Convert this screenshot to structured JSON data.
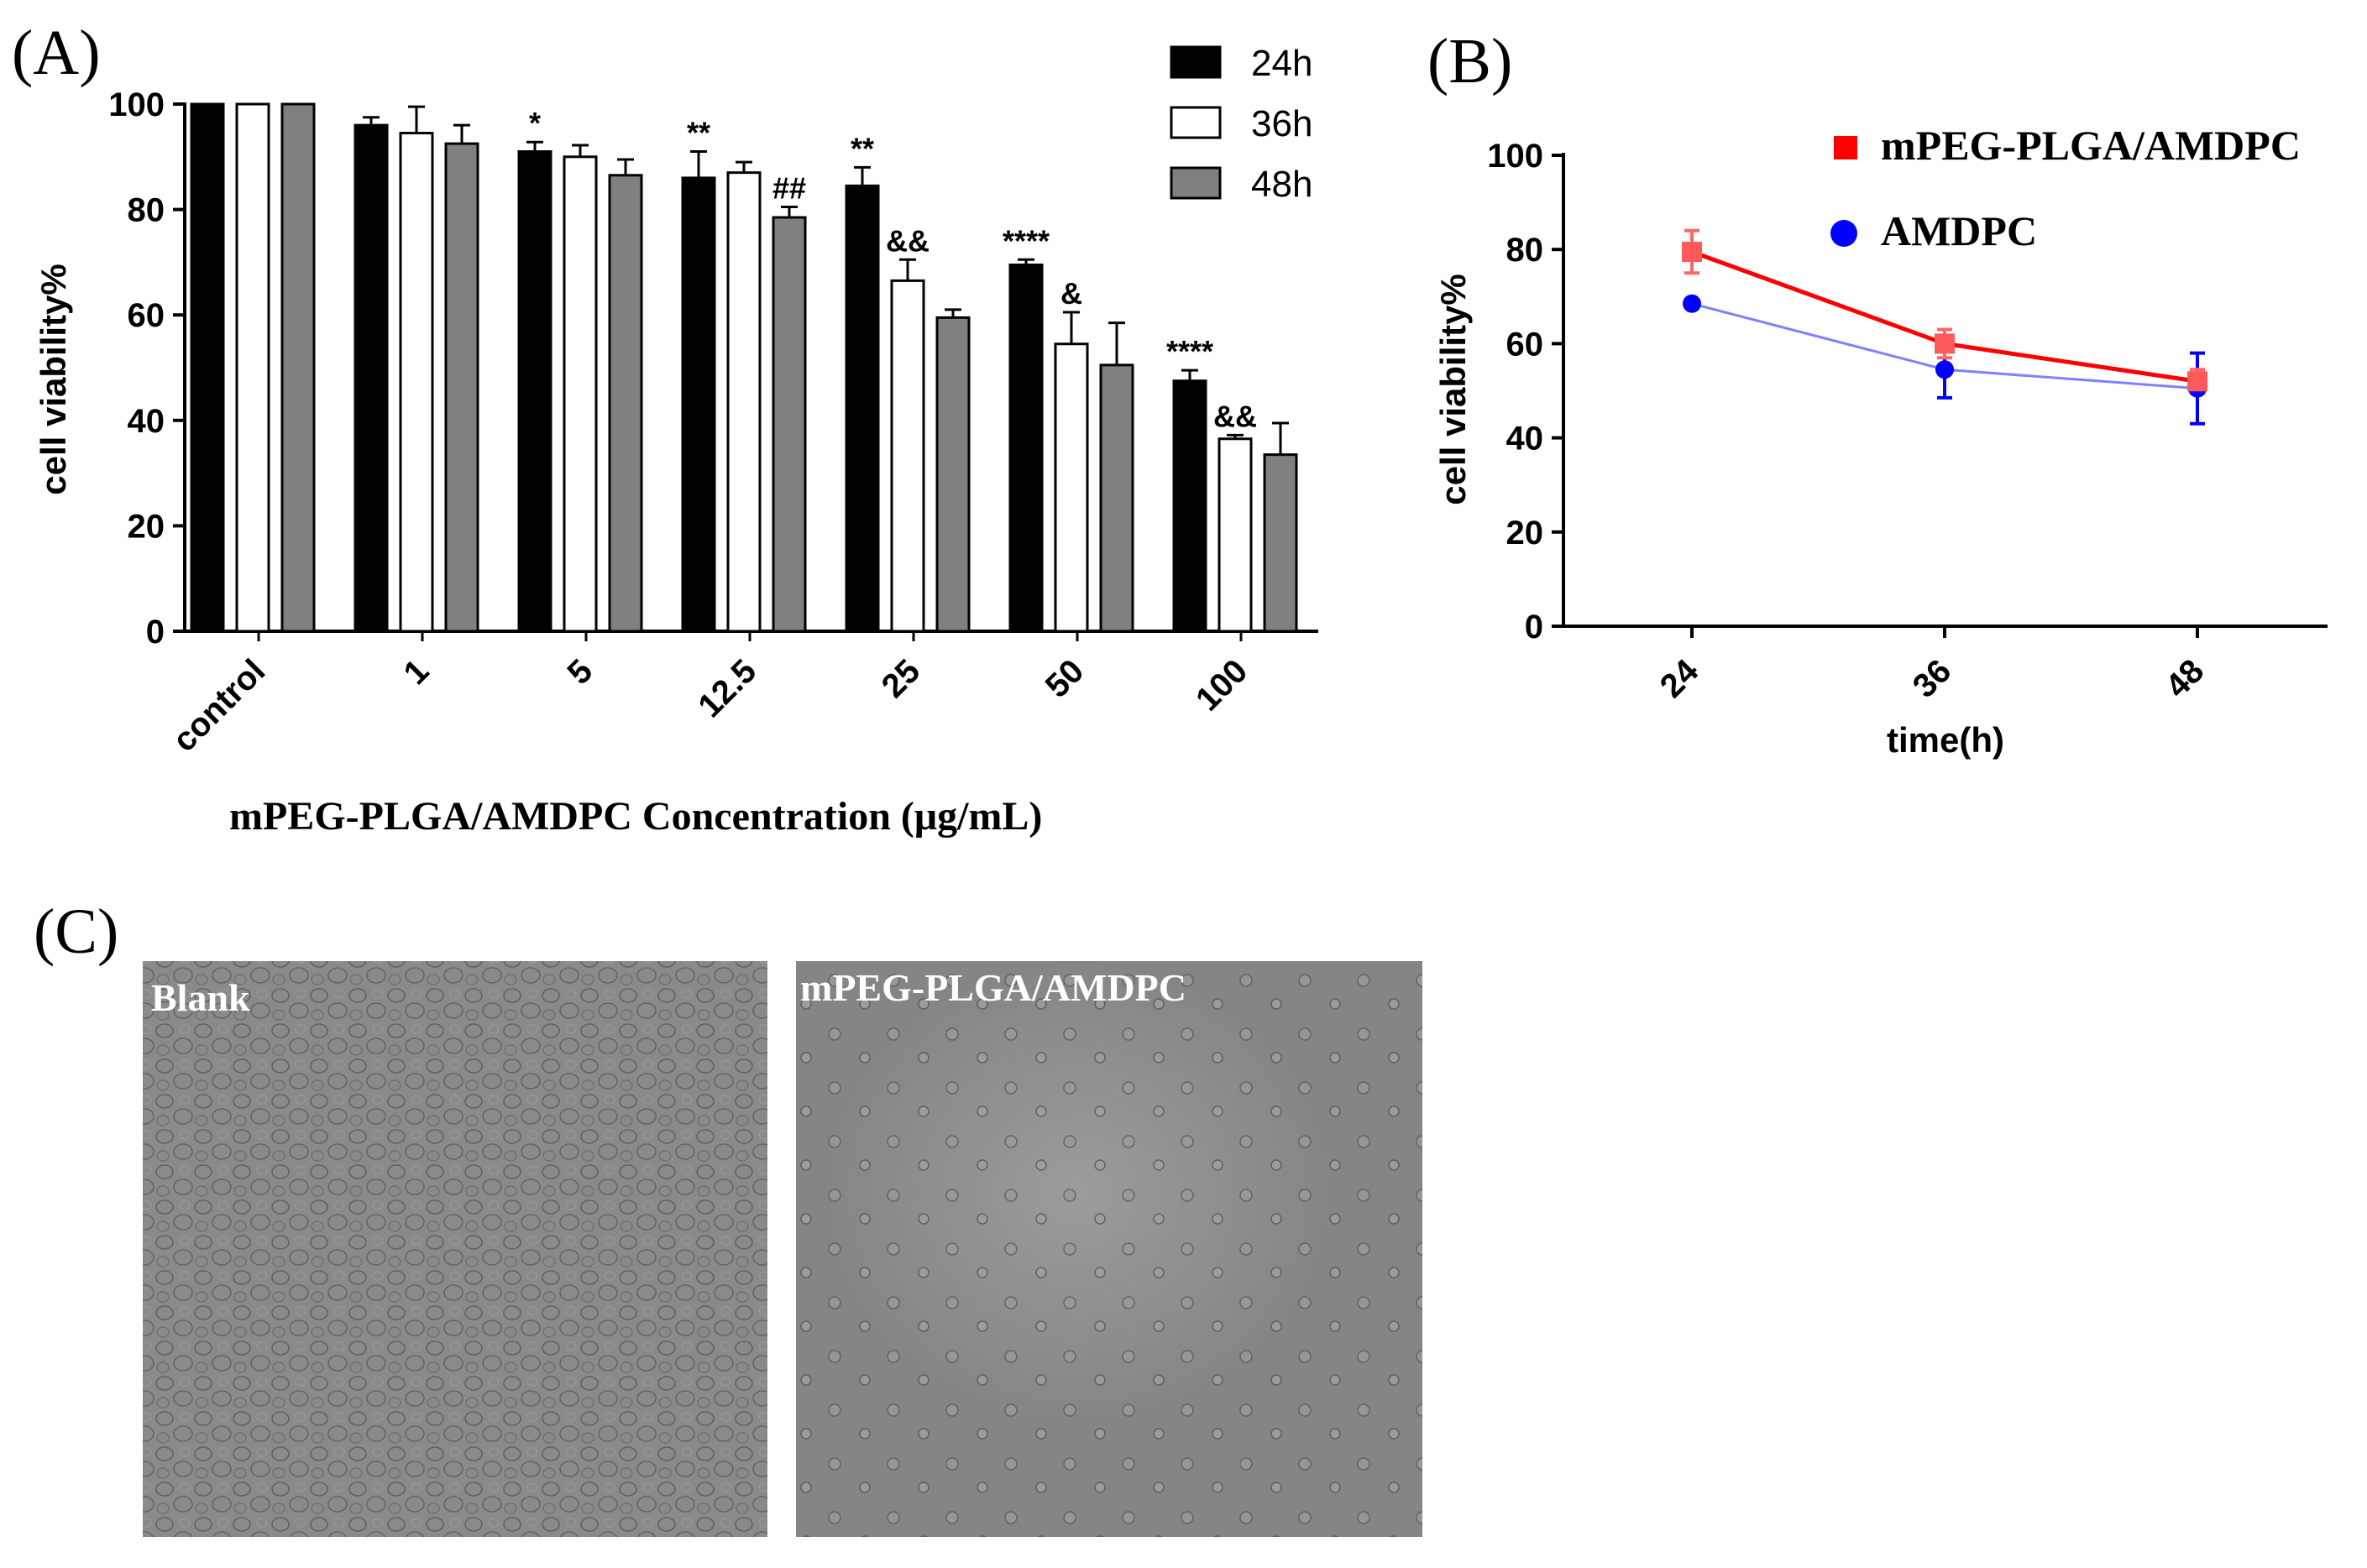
{
  "panels": {
    "a_label": "(A)",
    "b_label": "(B)",
    "c_label": "(C)"
  },
  "chart_data": [
    {
      "id": "A",
      "type": "bar",
      "title": "",
      "xlabel": "mPEG-PLGA/AMDPC Concentration  (μg/mL)",
      "ylabel": "cell viability%",
      "ylim": [
        0,
        100
      ],
      "yticks": [
        "0",
        "20",
        "40",
        "60",
        "80",
        "100"
      ],
      "categories": [
        "control",
        "1",
        "5",
        "12.5",
        "25",
        "50",
        "100"
      ],
      "legend_position": "top-right",
      "series": [
        {
          "name": "24h",
          "color": "#000000",
          "values": [
            100,
            96,
            91,
            86,
            84.5,
            69.5,
            47.5
          ],
          "errors": [
            0,
            1.5,
            1.8,
            5,
            3.5,
            1,
            2
          ],
          "labels": [
            "",
            "",
            "*",
            "**",
            "**",
            "****",
            "****"
          ]
        },
        {
          "name": "36h",
          "color": "#ffffff",
          "values": [
            100,
            94.5,
            90,
            87,
            66.5,
            54.5,
            36.5
          ],
          "errors": [
            0,
            5,
            2.2,
            2,
            4,
            6,
            0.7
          ],
          "labels": [
            "",
            "",
            "",
            "",
            "&&",
            "&",
            "&&"
          ]
        },
        {
          "name": "48h",
          "color": "#808080",
          "values": [
            100,
            92.5,
            86.5,
            78.5,
            59.5,
            50.5,
            33.5
          ],
          "errors": [
            0,
            3.5,
            3,
            2,
            1.5,
            8,
            6
          ],
          "labels": [
            "",
            "",
            "",
            "##",
            "",
            "",
            ""
          ]
        }
      ]
    },
    {
      "id": "B",
      "type": "line",
      "title": "",
      "xlabel": "time(h)",
      "ylabel": "cell viability%",
      "ylim": [
        0,
        100
      ],
      "yticks": [
        "0",
        "20",
        "40",
        "60",
        "80",
        "100"
      ],
      "x": [
        "24",
        "36",
        "48"
      ],
      "legend_position": "top-right",
      "series": [
        {
          "name": "mPEG-PLGA/AMDPC",
          "color": "#ff0000",
          "marker": "square",
          "values": [
            79.5,
            60,
            52
          ],
          "errors": [
            4.5,
            3,
            2.5
          ]
        },
        {
          "name": "AMDPC",
          "color": "#0000ff",
          "marker": "circle",
          "values": [
            68.5,
            54.5,
            50.5
          ],
          "errors": [
            0.8,
            6,
            7.5
          ]
        }
      ]
    }
  ],
  "micrographs": {
    "left_label": "Blank",
    "right_label": "mPEG-PLGA/AMDPC"
  }
}
